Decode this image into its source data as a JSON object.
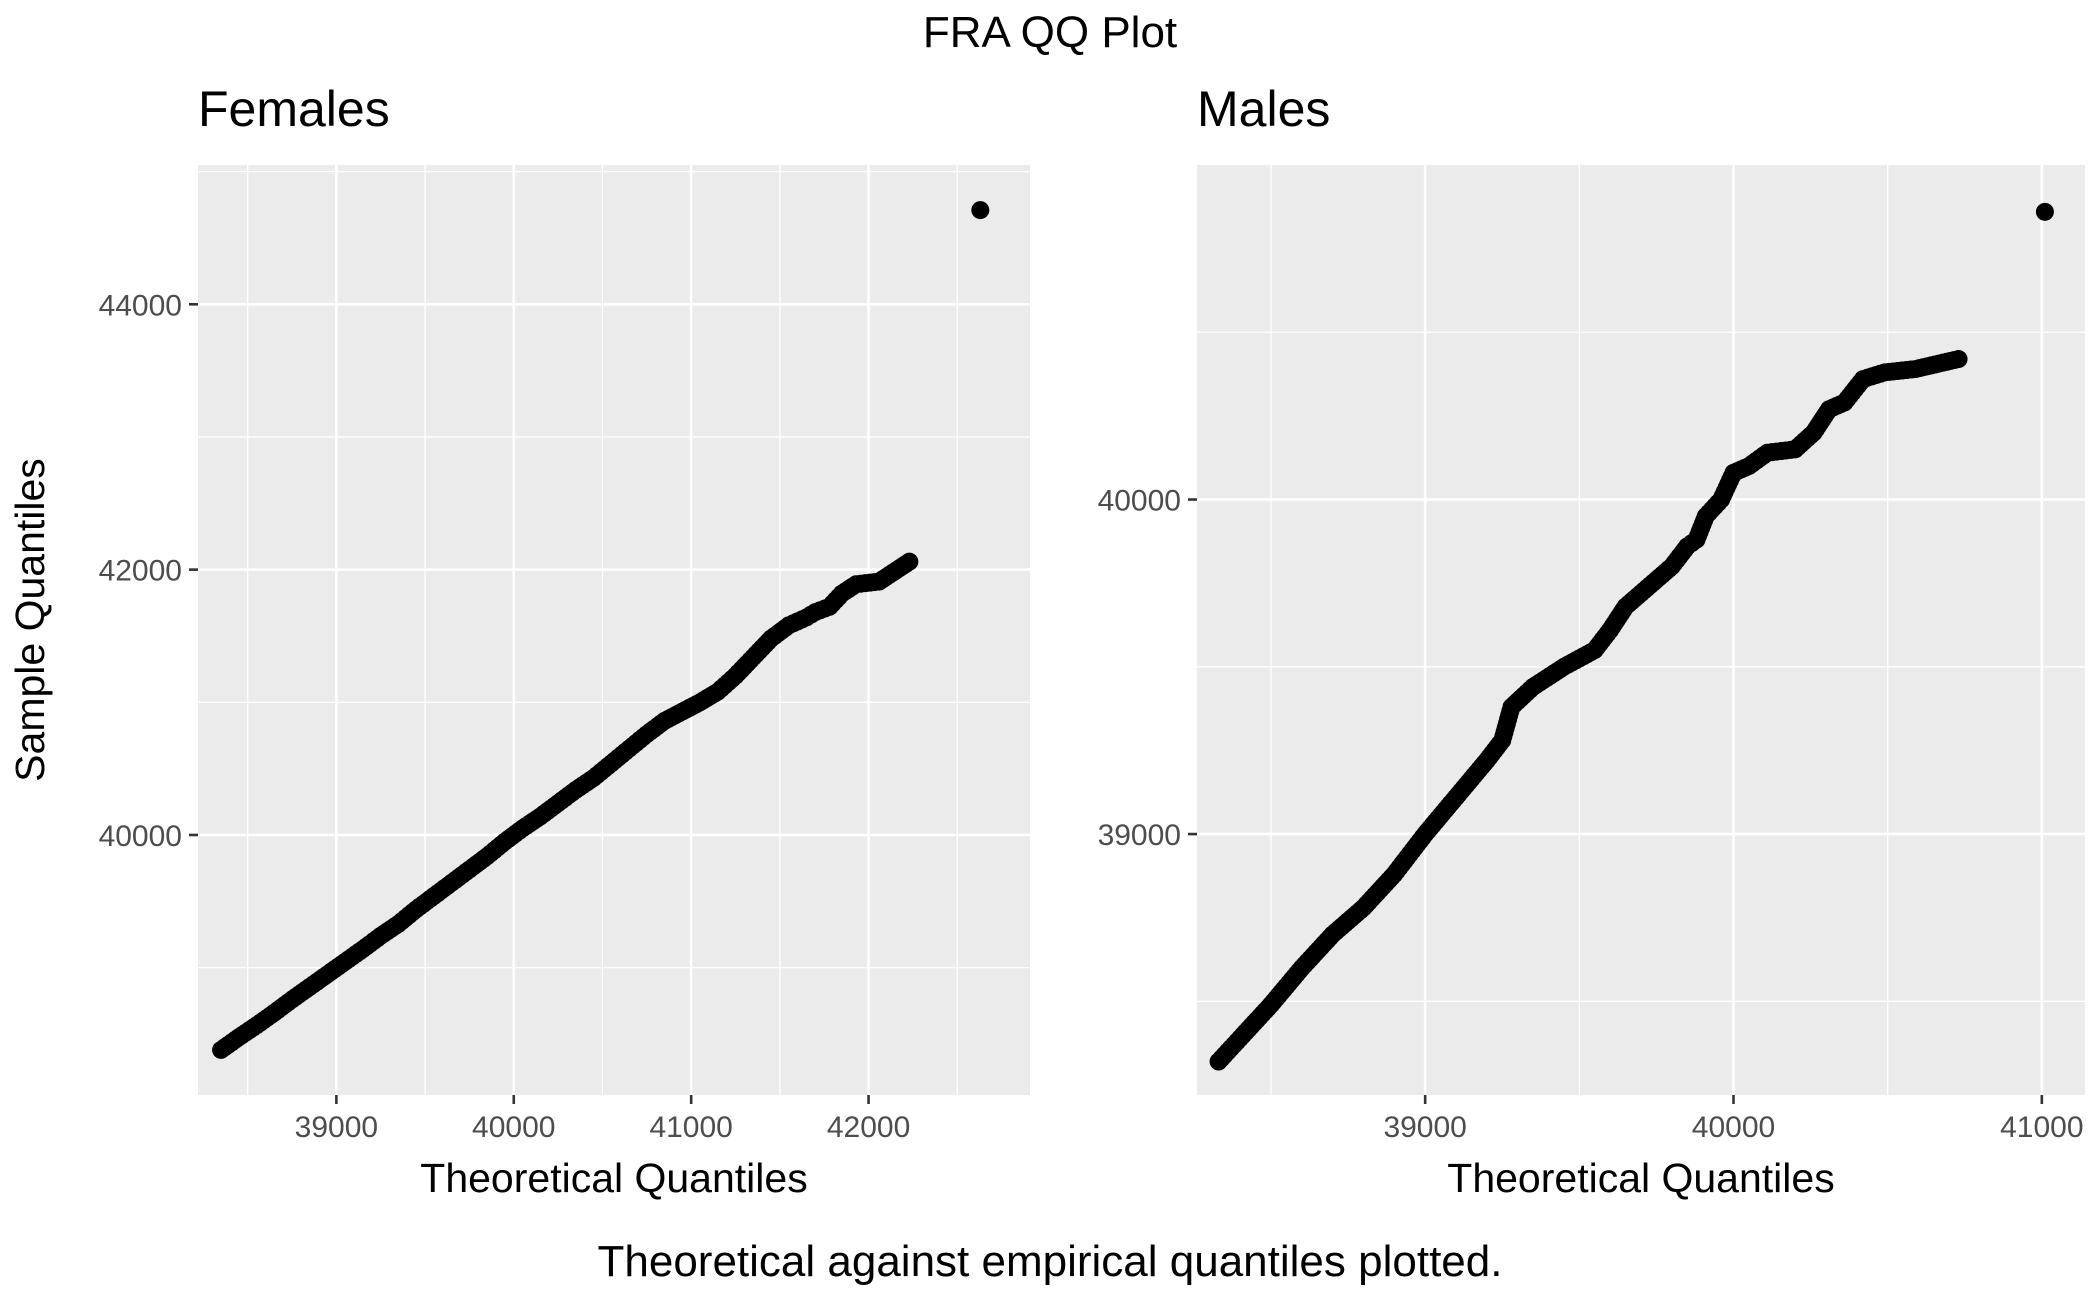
{
  "title": "FRA QQ Plot",
  "caption": "Theoretical against empirical quantiles plotted.",
  "chart_data": [
    {
      "type": "scatter",
      "title": "Females",
      "xlabel": "Theoretical Quantiles",
      "ylabel": "Sample Quantiles",
      "xlim": [
        38220,
        42910
      ],
      "ylim": [
        38040,
        45050
      ],
      "x_ticks": [
        39000,
        40000,
        41000,
        42000
      ],
      "x_tick_labels": [
        "39000",
        "40000",
        "41000",
        "42000"
      ],
      "y_ticks": [
        40000,
        42000,
        44000
      ],
      "y_tick_labels": [
        "40000",
        "42000",
        "44000"
      ],
      "points": [
        [
          38350,
          38380
        ],
        [
          38450,
          38475
        ],
        [
          38550,
          38565
        ],
        [
          38650,
          38660
        ],
        [
          38750,
          38760
        ],
        [
          38850,
          38855
        ],
        [
          38950,
          38950
        ],
        [
          39050,
          39045
        ],
        [
          39150,
          39140
        ],
        [
          39250,
          39240
        ],
        [
          39350,
          39330
        ],
        [
          39450,
          39440
        ],
        [
          39550,
          39540
        ],
        [
          39650,
          39640
        ],
        [
          39750,
          39740
        ],
        [
          39850,
          39840
        ],
        [
          39950,
          39950
        ],
        [
          40050,
          40050
        ],
        [
          40150,
          40140
        ],
        [
          40250,
          40240
        ],
        [
          40350,
          40340
        ],
        [
          40450,
          40430
        ],
        [
          40550,
          40540
        ],
        [
          40650,
          40650
        ],
        [
          40750,
          40760
        ],
        [
          40850,
          40860
        ],
        [
          40950,
          40930
        ],
        [
          41050,
          41000
        ],
        [
          41150,
          41080
        ],
        [
          41250,
          41200
        ],
        [
          41350,
          41340
        ],
        [
          41450,
          41480
        ],
        [
          41550,
          41580
        ],
        [
          41650,
          41640
        ],
        [
          41700,
          41680
        ],
        [
          41780,
          41720
        ],
        [
          41850,
          41820
        ],
        [
          41930,
          41890
        ],
        [
          42060,
          41910
        ],
        [
          42230,
          42060
        ],
        [
          42630,
          44710
        ]
      ],
      "grid": true,
      "legend": "none"
    },
    {
      "type": "scatter",
      "title": "Males",
      "xlabel": "Theoretical Quantiles",
      "ylabel": "",
      "xlim": [
        38260,
        41140
      ],
      "ylim": [
        38220,
        41000
      ],
      "x_ticks": [
        39000,
        40000,
        41000
      ],
      "x_tick_labels": [
        "39000",
        "40000",
        "41000"
      ],
      "y_ticks": [
        39000,
        40000
      ],
      "y_tick_labels": [
        "39000",
        "40000"
      ],
      "points": [
        [
          38330,
          38320
        ],
        [
          38400,
          38390
        ],
        [
          38500,
          38490
        ],
        [
          38600,
          38600
        ],
        [
          38700,
          38700
        ],
        [
          38800,
          38780
        ],
        [
          38900,
          38880
        ],
        [
          39000,
          39000
        ],
        [
          39100,
          39110
        ],
        [
          39200,
          39220
        ],
        [
          39250,
          39280
        ],
        [
          39280,
          39380
        ],
        [
          39350,
          39440
        ],
        [
          39450,
          39500
        ],
        [
          39550,
          39550
        ],
        [
          39600,
          39610
        ],
        [
          39650,
          39680
        ],
        [
          39700,
          39720
        ],
        [
          39750,
          39760
        ],
        [
          39800,
          39800
        ],
        [
          39850,
          39860
        ],
        [
          39880,
          39880
        ],
        [
          39910,
          39950
        ],
        [
          39960,
          40000
        ],
        [
          40000,
          40080
        ],
        [
          40050,
          40100
        ],
        [
          40110,
          40140
        ],
        [
          40200,
          40150
        ],
        [
          40260,
          40200
        ],
        [
          40310,
          40270
        ],
        [
          40360,
          40290
        ],
        [
          40420,
          40360
        ],
        [
          40490,
          40380
        ],
        [
          40590,
          40390
        ],
        [
          40730,
          40420
        ],
        [
          41010,
          40860
        ]
      ],
      "grid": true,
      "legend": "none"
    }
  ]
}
